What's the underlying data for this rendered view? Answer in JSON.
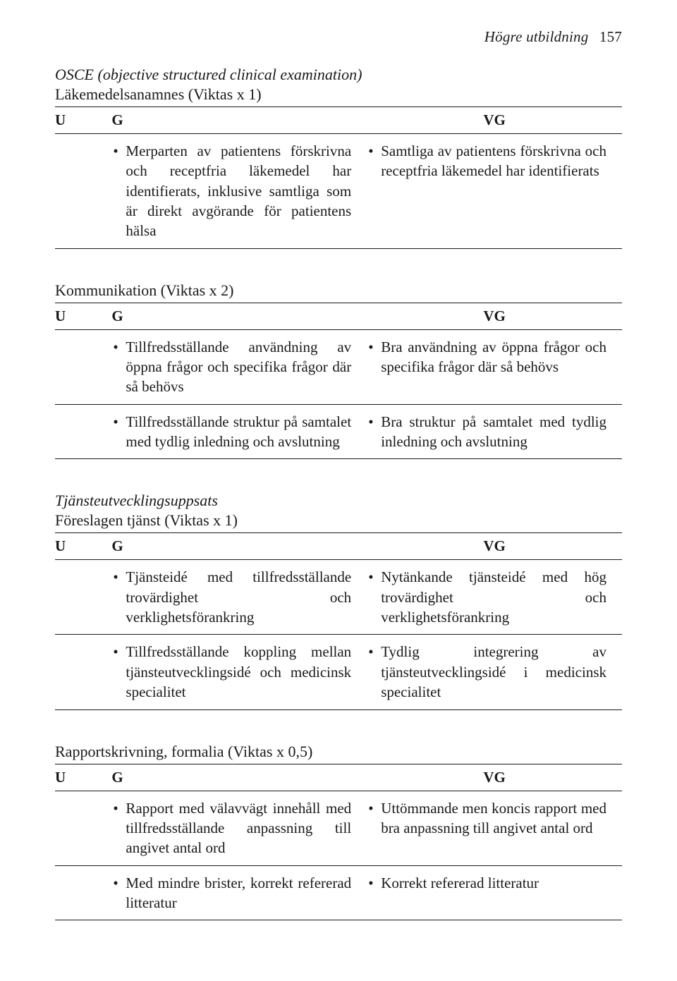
{
  "header": {
    "journal": "Högre utbildning",
    "page": "157"
  },
  "columns": {
    "u": "U",
    "g": "G",
    "vg": "VG"
  },
  "sections": [
    {
      "title_italic": "OSCE (objective structured clinical examination)",
      "subtitle": "Läkemedelsanamnes  (Viktas x 1)",
      "rows": [
        {
          "g": "Merparten av patientens förskrivna och receptfria läkemedel har identifierats, inklusive samtliga som är direkt avgörande för patientens hälsa",
          "vg": "Samtliga av patientens förskrivna och receptfria läkemedel har identifierats"
        }
      ]
    },
    {
      "title_italic": "",
      "subtitle": "Kommunikation  (Viktas x 2)",
      "rows": [
        {
          "g": "Tillfredsställande användning av öppna frågor och specifika frågor där så behövs",
          "vg": "Bra användning av öppna frågor och specifika frågor där så behövs"
        },
        {
          "g": "Tillfredsställande struktur på samtalet med tydlig inledning och avslutning",
          "vg": "Bra struktur på samtalet med tydlig inledning och avslutning"
        }
      ]
    },
    {
      "title_italic": "Tjänsteutvecklingsuppsats",
      "subtitle": "Föreslagen tjänst  (Viktas x 1)",
      "rows": [
        {
          "g": "Tjänsteidé med tillfredsställande trovärdighet och verklighetsförankring",
          "vg": "Nytänkande tjänsteidé med hög trovärdighet och verklighetsförankring"
        },
        {
          "g": "Tillfredsställande koppling mellan tjänsteutvecklingsidé och medicinsk specialitet",
          "vg": "Tydlig integrering av tjänsteutvecklingsidé i medicinsk specialitet"
        }
      ]
    },
    {
      "title_italic": "",
      "subtitle": "Rapportskrivning, formalia  (Viktas x 0,5)",
      "rows": [
        {
          "g": "Rapport med välavvägt innehåll med tillfredsställande anpassning till angivet antal ord",
          "vg": "Uttömmande men koncis rapport med bra anpassning till angivet antal ord"
        },
        {
          "g": "Med mindre brister, korrekt refererad litteratur",
          "vg": "Korrekt refererad litteratur"
        }
      ]
    }
  ]
}
